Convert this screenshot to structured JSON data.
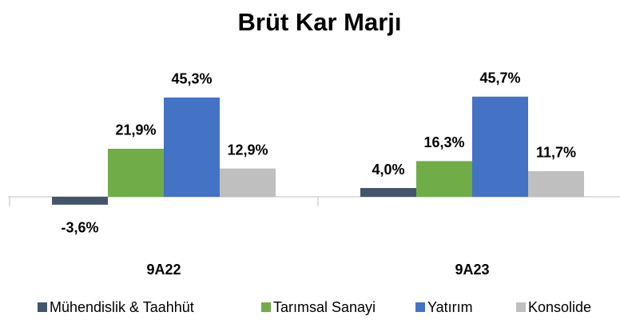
{
  "chart_data": {
    "type": "bar",
    "title": "Brüt Kar Marjı",
    "categories": [
      "9A22",
      "9A23"
    ],
    "series": [
      {
        "name": "Mühendislik & Taahhüt",
        "color": "#44546a",
        "values": [
          -3.6,
          4.0
        ],
        "value_labels": [
          "-3,6%",
          "4,0%"
        ]
      },
      {
        "name": "Tarımsal Sanayi",
        "color": "#70ad47",
        "values": [
          21.9,
          16.3
        ],
        "value_labels": [
          "21,9%",
          "16,3%"
        ]
      },
      {
        "name": "Yatırım",
        "color": "#4472c4",
        "values": [
          45.3,
          45.7
        ],
        "value_labels": [
          "45,3%",
          "45,7%"
        ]
      },
      {
        "name": "Konsolide",
        "color": "#bfbfbf",
        "values": [
          12.9,
          11.7
        ],
        "value_labels": [
          "12,9%",
          "11,7%"
        ]
      }
    ],
    "legend": "bottom"
  }
}
